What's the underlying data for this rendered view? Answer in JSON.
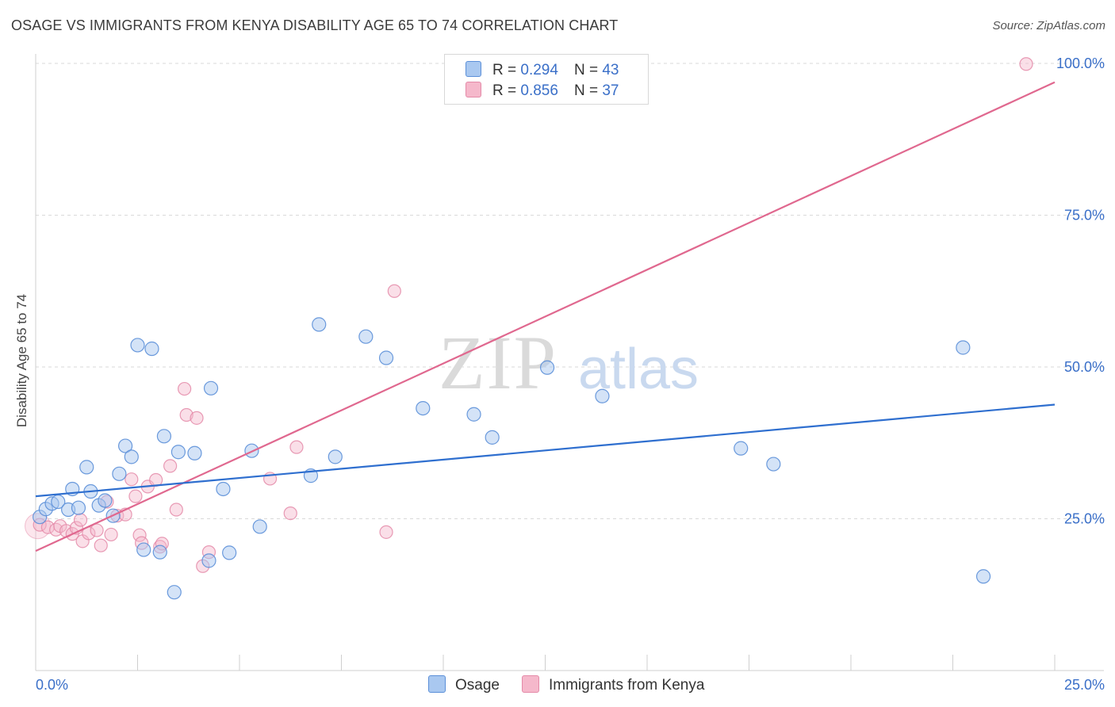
{
  "header": {
    "title": "OSAGE VS IMMIGRANTS FROM KENYA DISABILITY AGE 65 TO 74 CORRELATION CHART",
    "source": "Source: ZipAtlas.com"
  },
  "watermark": {
    "zip": "ZIP",
    "atlas": "atlas"
  },
  "legend": {
    "rows": [
      {
        "r_label": "R =",
        "r_value": "0.294",
        "n_label": "N =",
        "n_value": "43",
        "color": "#a9c8f0"
      },
      {
        "r_label": "R =",
        "r_value": "0.856",
        "n_label": "N =",
        "n_value": "37",
        "color": "#f5b8cb"
      }
    ]
  },
  "bottom_legend": [
    {
      "label": "Osage",
      "color": "#a9c8f0"
    },
    {
      "label": "Immigrants from Kenya",
      "color": "#f5b8cb"
    }
  ],
  "colors": {
    "osage_fill": "#a9c8f0",
    "osage_stroke": "#5b8fd8",
    "osage_line": "#2f6fcf",
    "kenya_fill": "#f5b8cb",
    "kenya_stroke": "#e48aa8",
    "kenya_line": "#e0688f",
    "axis_text": "#3a6fc8",
    "grid": "#d9d9d9"
  },
  "chart_data": {
    "type": "scatter",
    "title": "OSAGE VS IMMIGRANTS FROM KENYA DISABILITY AGE 65 TO 74 CORRELATION CHART",
    "xlabel": "",
    "ylabel": "Disability Age 65 to 74",
    "xlim": [
      0,
      25
    ],
    "ylim": [
      0,
      100
    ],
    "x_tick_labels": [
      {
        "value": 0,
        "label": "0.0%"
      },
      {
        "value": 25,
        "label": "25.0%"
      }
    ],
    "y_tick_labels": [
      {
        "value": 25,
        "label": "25.0%"
      },
      {
        "value": 50,
        "label": "50.0%"
      },
      {
        "value": 75,
        "label": "75.0%"
      },
      {
        "value": 100,
        "label": "100.0%"
      }
    ],
    "series": [
      {
        "name": "Osage",
        "r": 0.294,
        "n": 43,
        "trend": {
          "x": [
            0,
            25
          ],
          "y": [
            28.7,
            43.8
          ]
        },
        "points": [
          [
            0.1,
            25.3
          ],
          [
            0.25,
            26.6
          ],
          [
            0.4,
            27.5
          ],
          [
            0.55,
            27.8
          ],
          [
            0.8,
            26.5
          ],
          [
            0.9,
            29.9
          ],
          [
            1.05,
            26.8
          ],
          [
            1.25,
            33.5
          ],
          [
            1.35,
            29.5
          ],
          [
            1.55,
            27.2
          ],
          [
            1.7,
            28.0
          ],
          [
            1.9,
            25.5
          ],
          [
            2.05,
            32.4
          ],
          [
            2.2,
            37.0
          ],
          [
            2.35,
            35.2
          ],
          [
            2.5,
            53.6
          ],
          [
            2.65,
            19.9
          ],
          [
            2.85,
            53.0
          ],
          [
            3.05,
            19.5
          ],
          [
            3.15,
            38.6
          ],
          [
            3.4,
            12.9
          ],
          [
            3.5,
            36.0
          ],
          [
            3.9,
            35.8
          ],
          [
            4.25,
            18.1
          ],
          [
            4.3,
            46.5
          ],
          [
            4.6,
            29.9
          ],
          [
            4.75,
            19.4
          ],
          [
            5.3,
            36.2
          ],
          [
            5.5,
            23.7
          ],
          [
            6.75,
            32.1
          ],
          [
            6.95,
            57.0
          ],
          [
            7.35,
            35.2
          ],
          [
            8.1,
            55.0
          ],
          [
            8.6,
            51.5
          ],
          [
            9.5,
            43.2
          ],
          [
            10.75,
            42.2
          ],
          [
            11.2,
            38.4
          ],
          [
            12.55,
            49.9
          ],
          [
            13.9,
            45.2
          ],
          [
            17.3,
            36.6
          ],
          [
            18.1,
            34.0
          ],
          [
            22.75,
            53.2
          ],
          [
            23.25,
            15.5
          ]
        ]
      },
      {
        "name": "Immigrants from Kenya",
        "r": 0.856,
        "n": 37,
        "trend": {
          "x": [
            0,
            25
          ],
          "y": [
            19.7,
            96.9
          ]
        },
        "points": [
          [
            0.1,
            24.0
          ],
          [
            0.3,
            23.6
          ],
          [
            0.5,
            23.2
          ],
          [
            0.6,
            23.8
          ],
          [
            0.75,
            23.0
          ],
          [
            0.9,
            22.5
          ],
          [
            1.0,
            23.5
          ],
          [
            1.1,
            24.8
          ],
          [
            1.15,
            21.3
          ],
          [
            1.3,
            22.6
          ],
          [
            1.5,
            23.1
          ],
          [
            1.6,
            20.6
          ],
          [
            1.75,
            27.8
          ],
          [
            1.85,
            22.4
          ],
          [
            2.0,
            25.5
          ],
          [
            2.2,
            25.7
          ],
          [
            2.35,
            31.5
          ],
          [
            2.45,
            28.7
          ],
          [
            2.55,
            22.3
          ],
          [
            2.6,
            21.0
          ],
          [
            2.75,
            30.3
          ],
          [
            2.95,
            31.4
          ],
          [
            3.05,
            20.4
          ],
          [
            3.1,
            20.9
          ],
          [
            3.3,
            33.7
          ],
          [
            3.45,
            26.5
          ],
          [
            3.65,
            46.4
          ],
          [
            3.7,
            42.1
          ],
          [
            3.95,
            41.6
          ],
          [
            4.1,
            17.2
          ],
          [
            4.25,
            19.5
          ],
          [
            5.75,
            31.6
          ],
          [
            6.25,
            25.9
          ],
          [
            6.4,
            36.8
          ],
          [
            8.6,
            22.8
          ],
          [
            8.8,
            62.5
          ],
          [
            24.3,
            99.9
          ]
        ]
      }
    ]
  }
}
